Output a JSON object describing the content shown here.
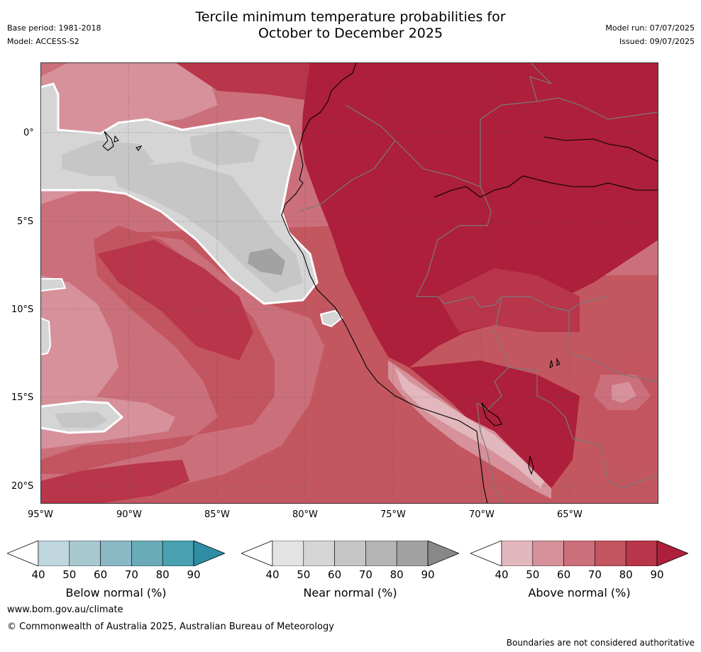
{
  "header": {
    "title_line1": "Tercile minimum temperature probabilities for",
    "title_line2": "October to December 2025",
    "base_period": "Base period: 1981-2018",
    "model": "Model: ACCESS-S2",
    "model_run": "Model run: 07/07/2025",
    "issued": "Issued: 09/07/2025"
  },
  "map": {
    "lat_labels": [
      "0°",
      "5°S",
      "10°S",
      "15°S",
      "20°S"
    ],
    "lon_labels": [
      "95°W",
      "90°W",
      "85°W",
      "80°W",
      "75°W",
      "70°W",
      "65°W"
    ]
  },
  "colorbars": [
    {
      "label": "Below normal (%)",
      "ticks": [
        "40",
        "50",
        "60",
        "70",
        "80",
        "90"
      ],
      "colors": [
        "#bfd6dc",
        "#a8c8d0",
        "#8ab8c4",
        "#6aabb8",
        "#48a0b0",
        "#2f8ea3"
      ]
    },
    {
      "label": "Near normal (%)",
      "ticks": [
        "40",
        "50",
        "60",
        "70",
        "80",
        "90"
      ],
      "colors": [
        "#e3e3e3",
        "#d5d5d5",
        "#c6c6c6",
        "#b4b4b4",
        "#a2a2a2",
        "#888888"
      ]
    },
    {
      "label": "Above normal (%)",
      "ticks": [
        "40",
        "50",
        "60",
        "70",
        "80",
        "90"
      ],
      "colors": [
        "#e2b7bd",
        "#d6919a",
        "#cb6f7b",
        "#c2555f",
        "#b8354a",
        "#ad1f3a"
      ]
    }
  ],
  "footer": {
    "url": "www.bom.gov.au/climate",
    "copyright": "© Commonwealth of Australia 2025, Australian Bureau of Meteorology",
    "disclaimer": "Boundaries are not considered authoritative"
  }
}
